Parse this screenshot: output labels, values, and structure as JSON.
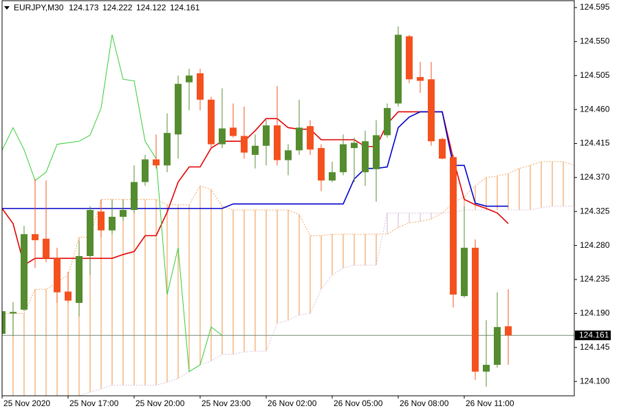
{
  "chart_data": {
    "type": "candlestick",
    "header": {
      "symbol": "EURJPY,M30",
      "open": 124.173,
      "high": 124.222,
      "low": 124.122,
      "close": 124.161
    },
    "categories": [
      "25 Nov 2020",
      null,
      null,
      null,
      null,
      null,
      "25 Nov 17:00",
      null,
      null,
      null,
      null,
      null,
      "25 Nov 20:00",
      null,
      null,
      null,
      null,
      null,
      "25 Nov 23:00",
      null,
      null,
      null,
      null,
      null,
      "26 Nov 02:00",
      null,
      null,
      null,
      null,
      null,
      "26 Nov 05:00",
      null,
      null,
      null,
      null,
      null,
      "26 Nov 08:00",
      null,
      null,
      null,
      null,
      null,
      "26 Nov 11:00",
      null,
      null,
      null,
      null,
      null,
      null,
      null,
      null,
      null,
      null
    ],
    "ohlc": {
      "up_color": "#548c2f",
      "down_color": "#f4511e",
      "open": [
        124.163,
        124.19,
        124.195,
        124.295,
        124.289,
        124.263,
        124.219,
        124.204,
        124.266,
        124.325,
        124.3,
        124.318,
        124.327,
        124.364,
        124.394,
        124.386,
        124.427,
        124.496,
        124.508,
        124.473,
        124.414,
        124.436,
        124.425,
        124.4,
        124.412,
        124.439,
        124.393,
        124.406,
        124.438,
        124.409,
        124.366,
        124.377,
        124.409,
        124.377,
        124.381,
        124.426,
        124.468,
        124.557,
        124.503,
        124.5,
        124.421,
        124.397,
        124.213,
        124.277,
        124.113,
        124.122,
        124.173,
        null,
        null,
        null,
        null,
        null,
        null
      ],
      "high": [
        124.2,
        124.205,
        124.306,
        124.368,
        124.366,
        124.277,
        124.245,
        124.286,
        124.332,
        124.341,
        124.341,
        124.341,
        124.386,
        124.4,
        124.427,
        124.455,
        124.505,
        124.514,
        124.514,
        124.477,
        124.488,
        124.468,
        124.464,
        124.427,
        124.446,
        124.491,
        124.414,
        124.473,
        124.446,
        124.414,
        124.391,
        124.427,
        124.423,
        124.432,
        124.446,
        124.468,
        124.57,
        124.559,
        124.523,
        124.523,
        124.423,
        124.4,
        124.332,
        124.288,
        124.181,
        124.218,
        124.222,
        null,
        null,
        null,
        null,
        null,
        null
      ],
      "low": [
        124.158,
        124.16,
        124.193,
        124.25,
        124.258,
        124.204,
        124.204,
        124.186,
        124.241,
        124.291,
        124.295,
        124.313,
        124.323,
        124.359,
        124.382,
        124.377,
        124.395,
        124.459,
        124.459,
        124.409,
        124.409,
        124.423,
        124.395,
        124.382,
        124.386,
        124.386,
        124.373,
        124.4,
        124.4,
        124.352,
        124.364,
        124.373,
        124.364,
        124.359,
        124.338,
        124.423,
        124.464,
        124.495,
        124.482,
        124.412,
        124.394,
        124.198,
        124.211,
        124.102,
        124.093,
        124.118,
        124.122,
        null,
        null,
        null,
        null,
        null,
        null
      ],
      "close": [
        124.193,
        124.192,
        124.295,
        124.287,
        124.263,
        124.218,
        124.207,
        124.266,
        124.327,
        124.3,
        124.318,
        124.327,
        124.364,
        124.394,
        124.386,
        124.429,
        124.494,
        124.505,
        124.473,
        124.414,
        124.435,
        124.425,
        124.403,
        124.412,
        124.439,
        124.393,
        124.406,
        124.436,
        124.407,
        124.366,
        124.377,
        124.414,
        124.416,
        124.418,
        124.426,
        124.462,
        124.559,
        124.5,
        124.498,
        124.418,
        124.395,
        124.215,
        124.277,
        124.113,
        124.122,
        124.172,
        124.161,
        null,
        null,
        null,
        null,
        null,
        null
      ]
    },
    "cloud": {
      "span_a": {
        "color": "#f4a460",
        "values": [
          124.19,
          124.19,
          124.19,
          124.222,
          124.222,
          124.231,
          124.241,
          124.291,
          124.291,
          124.341,
          124.341,
          124.341,
          124.341,
          124.341,
          124.341,
          124.334,
          124.334,
          124.334,
          124.359,
          124.354,
          124.332,
          124.327,
          124.327,
          124.327,
          124.327,
          124.327,
          124.327,
          124.321,
          124.293,
          124.293,
          124.295,
          124.295,
          124.295,
          124.295,
          124.295,
          124.295,
          124.304,
          124.31,
          124.312,
          124.315,
          124.323,
          124.336,
          124.345,
          124.359,
          124.37,
          124.372,
          124.375,
          124.382,
          124.386,
          124.391,
          124.391,
          124.391,
          124.386
        ]
      },
      "span_b": {
        "color": "#d8bfd8",
        "values": [
          124.058,
          124.058,
          124.058,
          124.058,
          124.068,
          124.068,
          124.077,
          124.081,
          124.086,
          124.09,
          124.095,
          124.095,
          124.095,
          124.095,
          124.095,
          124.099,
          124.104,
          124.113,
          124.122,
          124.127,
          124.136,
          124.136,
          124.139,
          124.14,
          124.14,
          124.177,
          124.181,
          124.188,
          124.19,
          124.222,
          124.241,
          124.25,
          124.254,
          124.254,
          124.254,
          124.323,
          124.323,
          124.323,
          124.323,
          124.323,
          124.323,
          124.324,
          124.327,
          124.327,
          124.327,
          124.327,
          124.327,
          124.327,
          124.327,
          124.33,
          124.332,
          124.332,
          124.332
        ]
      }
    },
    "lines": [
      {
        "color": "#e00000",
        "values": [
          124.329,
          124.309,
          124.254,
          124.263,
          124.263,
          124.263,
          124.263,
          124.263,
          124.263,
          124.263,
          124.263,
          124.268,
          124.272,
          124.293,
          124.293,
          124.324,
          124.364,
          124.384,
          124.384,
          124.409,
          124.418,
          124.418,
          124.418,
          124.432,
          124.448,
          124.448,
          124.436,
          124.434,
          124.434,
          124.42,
          124.42,
          124.42,
          124.42,
          124.411,
          124.411,
          124.441,
          124.457,
          124.457,
          124.457,
          124.457,
          124.457,
          124.395,
          124.341,
          124.334,
          124.329,
          124.323,
          124.309,
          null,
          null,
          null,
          null,
          null,
          null
        ]
      },
      {
        "color": "#0000cc",
        "values": [
          124.329,
          124.329,
          124.329,
          124.329,
          124.329,
          124.329,
          124.329,
          124.329,
          124.329,
          124.329,
          124.329,
          124.329,
          124.329,
          124.329,
          124.329,
          124.329,
          124.329,
          124.329,
          124.329,
          124.329,
          124.329,
          124.335,
          124.335,
          124.335,
          124.335,
          124.335,
          124.335,
          124.335,
          124.335,
          124.335,
          124.335,
          124.335,
          124.368,
          124.382,
          124.382,
          124.384,
          124.436,
          124.45,
          124.457,
          124.457,
          124.457,
          124.386,
          124.386,
          124.336,
          124.332,
          124.332,
          124.332,
          null,
          null,
          null,
          null,
          null,
          null
        ]
      },
      {
        "color": "#33cc33",
        "values": [
          124.406,
          124.436,
          124.407,
          124.366,
          124.377,
          124.414,
          124.416,
          124.418,
          124.426,
          124.462,
          124.559,
          124.5,
          124.498,
          124.418,
          124.395,
          124.215,
          124.277,
          124.113,
          124.122,
          124.172,
          124.161,
          null,
          null,
          null,
          null,
          null,
          null,
          null,
          null,
          null,
          null,
          null,
          null,
          null,
          null,
          null,
          null,
          null,
          null,
          null,
          null,
          null,
          null,
          null,
          null,
          null,
          null,
          null,
          null,
          null,
          null,
          null,
          null
        ]
      }
    ],
    "last_price": 124.161,
    "ylim": [
      124.081,
      124.605
    ],
    "yticks": [
      124.595,
      {
        "value": 124.55,
        "label": "124.550"
      },
      124.505,
      {
        "value": 124.46,
        "label": "124.460"
      },
      124.415,
      {
        "value": 124.37,
        "label": "124.370"
      },
      124.325,
      {
        "value": 124.28,
        "label": "124.280"
      },
      124.235,
      {
        "value": 124.19,
        "label": "124.190"
      },
      124.145,
      {
        "value": 124.1,
        "label": "124.100"
      }
    ],
    "grid": false
  }
}
